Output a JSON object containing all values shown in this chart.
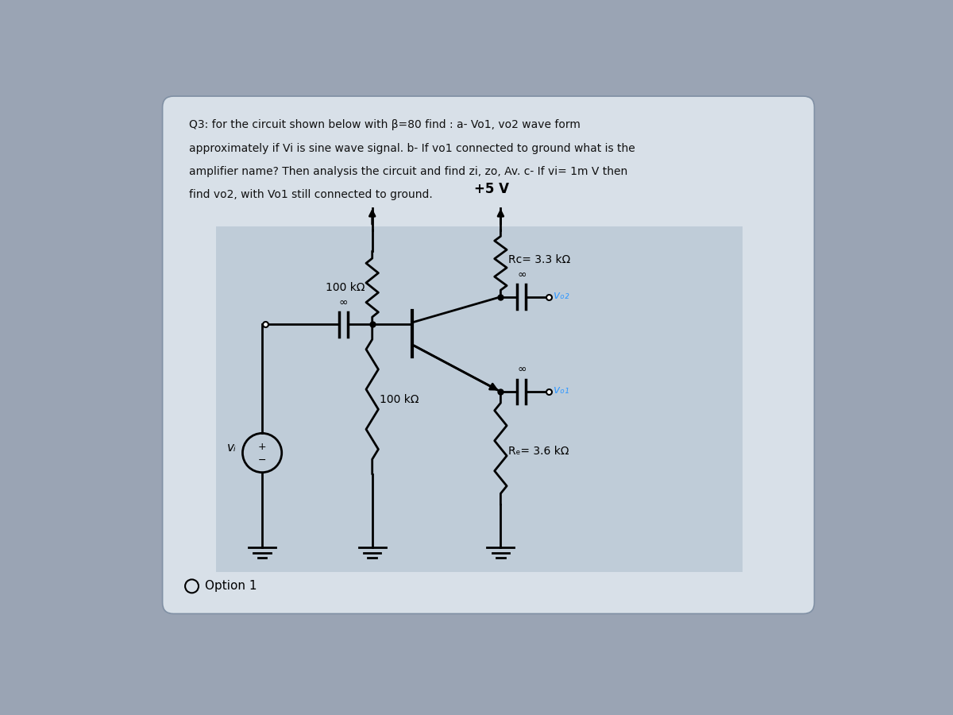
{
  "bg_outer": "#9aa4b4",
  "bg_card": "#d8e0e8",
  "bg_circuit": "#bfccd8",
  "question_text_line1": "Q3: for the circuit shown below with β=80 find : a- Vo1, vo2 wave form",
  "question_text_line2": "approximately if Vi is sine wave signal. b- If vo1 connected to ground what is the",
  "question_text_line3": "amplifier name? Then analysis the circuit and find zi, zo, Av. c- If vi= 1m V then",
  "question_text_line4": "find vo2, with Vo1 still connected to ground.",
  "option_text": "Option 1",
  "vcc_label": "+5 V",
  "rc_label": "Rc= 3.3 kΩ",
  "r1_label": "100 kΩ",
  "r2_label": "100 kΩ",
  "re_label": "Rₑ= 3.6 kΩ",
  "vo2_label": "vₒ₂",
  "vo1_label": "vₒ₁",
  "vi_label": "vᵢ"
}
